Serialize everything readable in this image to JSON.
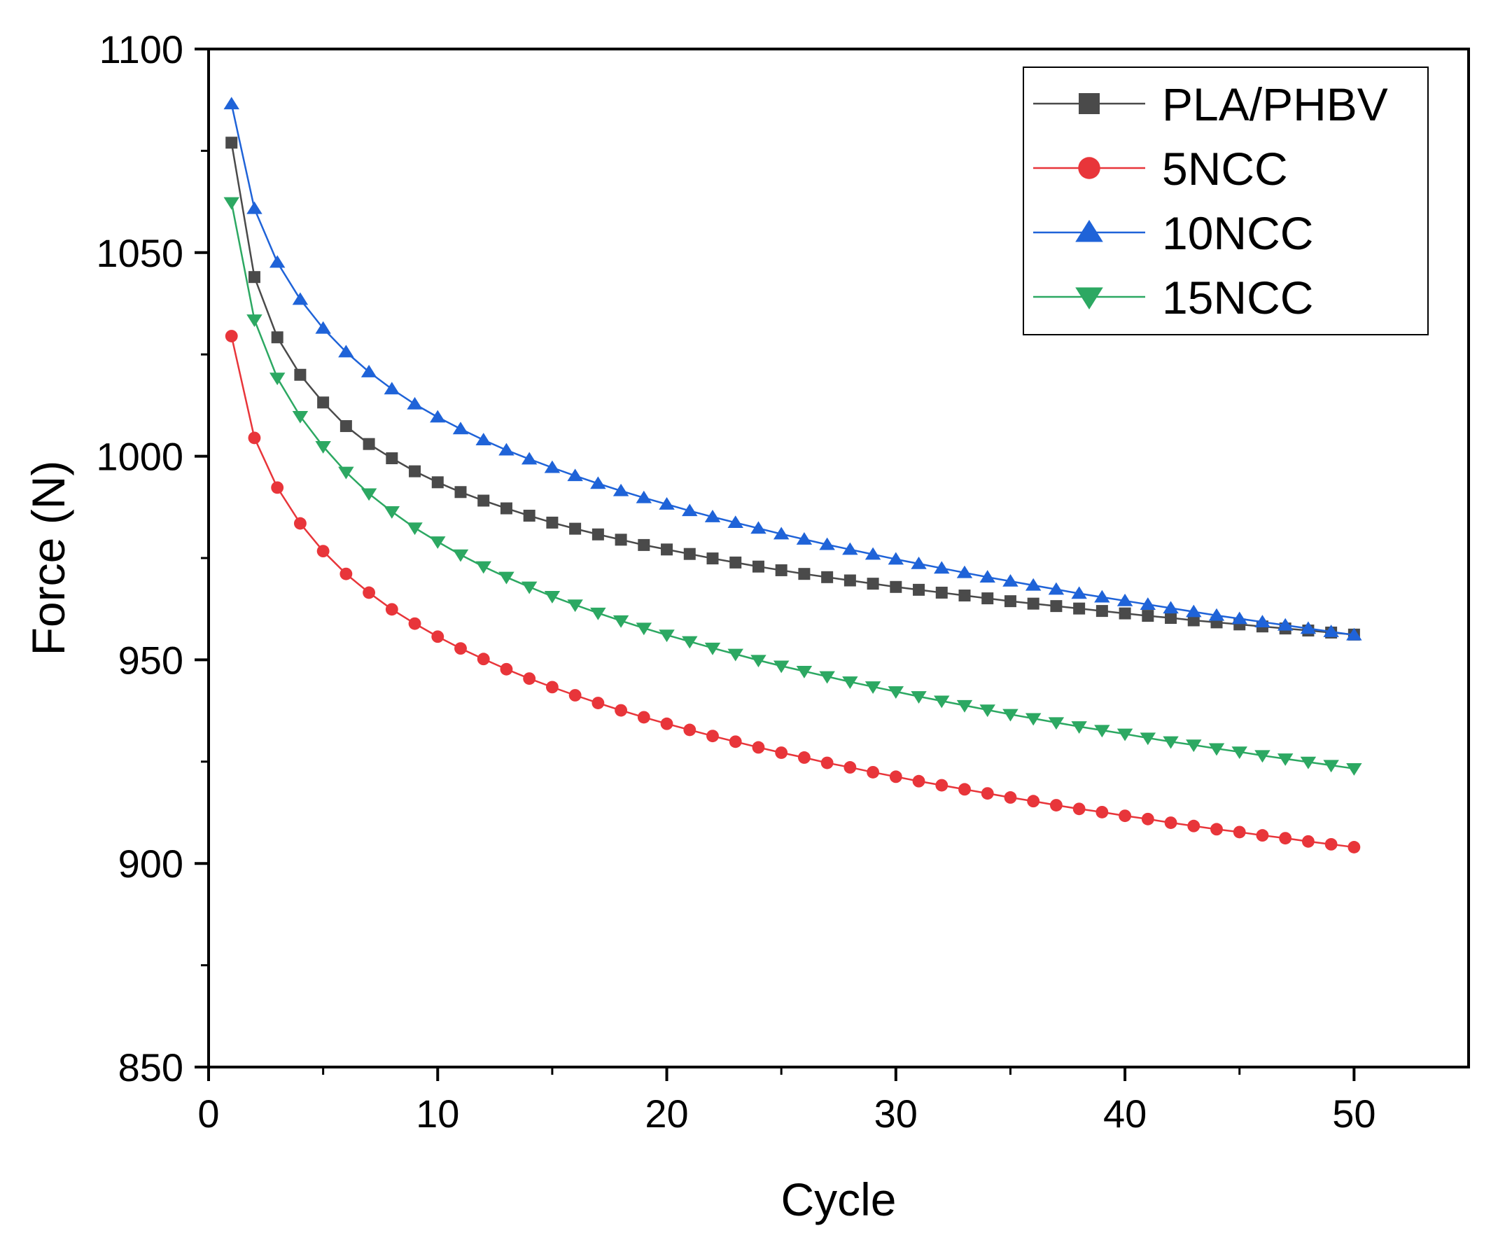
{
  "chart_data": {
    "type": "line",
    "title": "",
    "xlabel": "Cycle",
    "ylabel": "Force (N)",
    "xlim": [
      0,
      55
    ],
    "ylim": [
      850,
      1100
    ],
    "xticks": [
      0,
      10,
      20,
      30,
      40,
      50
    ],
    "yticks": [
      850,
      900,
      950,
      1000,
      1050,
      1100
    ],
    "grid": false,
    "legend_position": "top-right",
    "x": [
      1,
      2,
      3,
      4,
      5,
      6,
      7,
      8,
      9,
      10,
      11,
      12,
      13,
      14,
      15,
      16,
      17,
      18,
      19,
      20,
      21,
      22,
      23,
      24,
      25,
      26,
      27,
      28,
      29,
      30,
      31,
      32,
      33,
      34,
      35,
      36,
      37,
      38,
      39,
      40,
      41,
      42,
      43,
      44,
      45,
      46,
      47,
      48,
      49,
      50
    ],
    "series": [
      {
        "name": "PLA/PHBV",
        "color": "#4a4a4a",
        "marker": "square",
        "values": [
          1077,
          1044,
          1029.2,
          1020,
          1013.2,
          1007.4,
          1003,
          999.5,
          996.3,
          993.6,
          991.2,
          989.1,
          987.2,
          985.4,
          983.7,
          982.2,
          980.8,
          979.5,
          978.2,
          977.1,
          976,
          974.9,
          973.9,
          972.9,
          972,
          971.1,
          970.3,
          969.5,
          968.7,
          967.9,
          967.2,
          966.5,
          965.8,
          965.1,
          964.4,
          963.8,
          963.2,
          962.6,
          962,
          961.4,
          960.8,
          960.3,
          959.7,
          959.2,
          958.7,
          958.2,
          957.7,
          957.2,
          956.7,
          956.2
        ]
      },
      {
        "name": "5NCC",
        "color": "#e8353a",
        "marker": "circle",
        "values": [
          1029.5,
          1004.5,
          992.3,
          983.5,
          976.7,
          971.1,
          966.5,
          962.4,
          958.9,
          955.7,
          952.8,
          950.2,
          947.7,
          945.4,
          943.3,
          941.3,
          939.4,
          937.6,
          935.9,
          934.3,
          932.8,
          931.3,
          929.9,
          928.5,
          927.2,
          926,
          924.7,
          923.6,
          922.4,
          921.3,
          920.2,
          919.2,
          918.2,
          917.2,
          916.2,
          915.3,
          914.3,
          913.4,
          912.6,
          911.7,
          910.9,
          910,
          909.2,
          908.4,
          907.7,
          906.9,
          906.2,
          905.4,
          904.7,
          904
        ]
      },
      {
        "name": "10NCC",
        "color": "#1f63d8",
        "marker": "triangle-up",
        "values": [
          1086.5,
          1060.8,
          1047.6,
          1038.5,
          1031.4,
          1025.6,
          1020.7,
          1016.5,
          1012.8,
          1009.6,
          1006.7,
          1004,
          1001.5,
          999.3,
          997.2,
          995.2,
          993.3,
          991.5,
          989.8,
          988.2,
          986.6,
          985.1,
          983.7,
          982.3,
          980.9,
          979.6,
          978.3,
          977.1,
          975.9,
          974.7,
          973.6,
          972.5,
          971.4,
          970.3,
          969.3,
          968.3,
          967.3,
          966.3,
          965.4,
          964.5,
          963.6,
          962.7,
          961.8,
          960.9,
          960.1,
          959.3,
          958.5,
          957.7,
          956.9,
          956.1
        ]
      },
      {
        "name": "15NCC",
        "color": "#2ca862",
        "marker": "triangle-down",
        "values": [
          1062.3,
          1033.5,
          1019.2,
          1009.8,
          1002.4,
          996.1,
          990.8,
          986.4,
          982.4,
          979,
          975.8,
          972.9,
          970.3,
          967.9,
          965.6,
          963.5,
          961.5,
          959.6,
          957.8,
          956.1,
          954.5,
          952.9,
          951.4,
          949.9,
          948.5,
          947.2,
          945.9,
          944.6,
          943.4,
          942.2,
          941,
          939.9,
          938.8,
          937.7,
          936.6,
          935.6,
          934.6,
          933.6,
          932.7,
          931.8,
          930.8,
          929.9,
          929.1,
          928.2,
          927.4,
          926.5,
          925.7,
          924.9,
          924.1,
          923.3
        ]
      }
    ]
  }
}
